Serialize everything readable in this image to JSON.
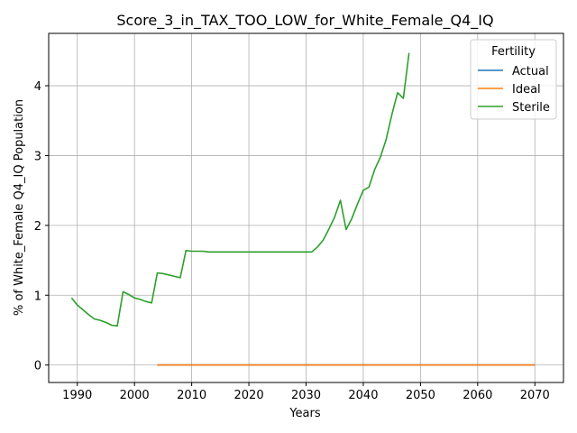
{
  "chart_data": {
    "type": "line",
    "title": "Score_3_in_TAX_TOO_LOW_for_White_Female_Q4_IQ",
    "xlabel": "Years",
    "ylabel": "% of White_Female Q4_IQ Population",
    "xlim": [
      1985,
      2075
    ],
    "ylim": [
      -0.25,
      4.75
    ],
    "xticks": [
      1990,
      2000,
      2010,
      2020,
      2030,
      2040,
      2050,
      2060,
      2070
    ],
    "yticks": [
      0,
      1,
      2,
      3,
      4
    ],
    "grid": true,
    "legend": {
      "title": "Fertility",
      "placement": "top-right"
    },
    "series": [
      {
        "name": "Actual",
        "color": "#1f77b4",
        "x": [
          2004,
          2070
        ],
        "y": [
          0,
          0
        ]
      },
      {
        "name": "Ideal",
        "color": "#ff7f0e",
        "x": [
          2004,
          2010,
          2020,
          2030,
          2040,
          2050,
          2060,
          2070
        ],
        "y": [
          0,
          0,
          0,
          0,
          0,
          0,
          0,
          0
        ]
      },
      {
        "name": "Sterile",
        "color": "#2ca02c",
        "x": [
          1989,
          1990,
          1991,
          1992,
          1993,
          1994,
          1995,
          1996,
          1997,
          1998,
          1999,
          2000,
          2001,
          2002,
          2003,
          2004,
          2005,
          2006,
          2007,
          2008,
          2009,
          2010,
          2011,
          2012,
          2013,
          2015,
          2020,
          2025,
          2030,
          2031,
          2032,
          2033,
          2034,
          2035,
          2036,
          2037,
          2038,
          2039,
          2040,
          2041,
          2042,
          2043,
          2044,
          2045,
          2046,
          2047,
          2048
        ],
        "y": [
          0.96,
          0.86,
          0.79,
          0.72,
          0.66,
          0.64,
          0.61,
          0.57,
          0.56,
          1.05,
          1.01,
          0.96,
          0.94,
          0.91,
          0.89,
          1.32,
          1.31,
          1.29,
          1.27,
          1.25,
          1.64,
          1.63,
          1.63,
          1.63,
          1.62,
          1.62,
          1.62,
          1.62,
          1.62,
          1.62,
          1.69,
          1.79,
          1.95,
          2.12,
          2.36,
          1.94,
          2.1,
          2.31,
          2.5,
          2.55,
          2.8,
          2.98,
          3.23,
          3.59,
          3.9,
          3.82,
          4.47
        ]
      }
    ]
  }
}
